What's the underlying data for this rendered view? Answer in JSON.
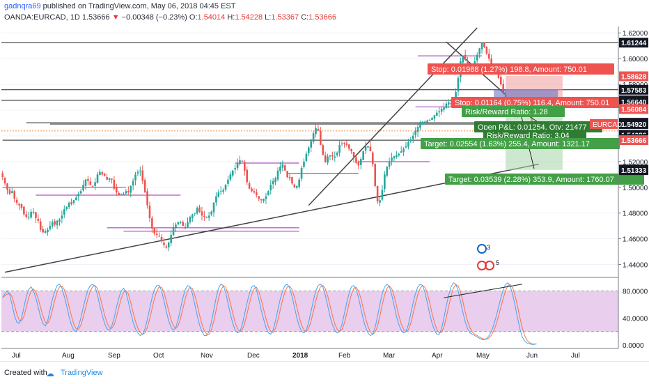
{
  "header": {
    "user": "gadnqra69",
    "published": " published on TradingView.com, May 06, 2018 04:45 EST",
    "symbol_interval": "OANDA:EURCAD, 1D",
    "last": "1.53666",
    "change": "−0.00348 (−0.23%)",
    "open_label": "O:",
    "open": "1.54014",
    "high_label": "H:",
    "high": "1.54228",
    "low_label": "L:",
    "low": "1.53367",
    "close_label": "C:",
    "close": "1.53666"
  },
  "footer": {
    "created_with": "Created with",
    "brand": "TradingView"
  },
  "colors": {
    "up": "#26a69a",
    "down": "#ef5350",
    "ink": "#131722",
    "purple": "#9c27b0",
    "stoch_k": "#42a5f5",
    "stoch_d": "#ff7043"
  },
  "chart_data": [
    {
      "type": "candlestick",
      "symbol": "OANDA:EURCAD",
      "interval": "1D",
      "ylim": [
        1.43,
        1.625
      ],
      "y_ticks": [
        "1.62000",
        "1.60000",
        "1.58000",
        "1.56000",
        "1.54000",
        "1.52000",
        "1.50000",
        "1.48000",
        "1.46000",
        "1.44000"
      ],
      "x_ticks": [
        "Jul",
        "Aug",
        "Sep",
        "Oct",
        "Nov",
        "Dec",
        "2018",
        "Feb",
        "Mar",
        "Apr",
        "May",
        "Jun",
        "Jul"
      ],
      "closes": [
        1.508,
        1.503,
        1.498,
        1.495,
        1.497,
        1.491,
        1.488,
        1.486,
        1.484,
        1.479,
        1.477,
        1.477,
        1.481,
        1.481,
        1.476,
        1.474,
        1.467,
        1.465,
        1.466,
        1.467,
        1.47,
        1.473,
        1.471,
        1.474,
        1.475,
        1.478,
        1.483,
        1.485,
        1.488,
        1.487,
        1.49,
        1.492,
        1.495,
        1.497,
        1.502,
        1.506,
        1.505,
        1.502,
        1.501,
        1.504,
        1.51,
        1.512,
        1.51,
        1.509,
        1.506,
        1.507,
        1.506,
        1.499,
        1.496,
        1.494,
        1.495,
        1.495,
        1.497,
        1.496,
        1.501,
        1.505,
        1.51,
        1.512,
        1.513,
        1.505,
        1.496,
        1.486,
        1.476,
        1.468,
        1.464,
        1.463,
        1.462,
        1.458,
        1.455,
        1.453,
        1.457,
        1.463,
        1.469,
        1.471,
        1.473,
        1.473,
        1.47,
        1.469,
        1.473,
        1.477,
        1.479,
        1.48,
        1.484,
        1.481,
        1.478,
        1.477,
        1.477,
        1.478,
        1.481,
        1.488,
        1.493,
        1.496,
        1.497,
        1.498,
        1.502,
        1.506,
        1.51,
        1.513,
        1.515,
        1.519,
        1.521,
        1.52,
        1.513,
        1.504,
        1.499,
        1.497,
        1.496,
        1.494,
        1.491,
        1.49,
        1.491,
        1.493,
        1.497,
        1.502,
        1.505,
        1.507,
        1.513,
        1.516,
        1.518,
        1.513,
        1.508,
        1.507,
        1.503,
        1.5,
        1.501,
        1.506,
        1.515,
        1.52,
        1.526,
        1.531,
        1.536,
        1.542,
        1.546,
        1.544,
        1.533,
        1.525,
        1.52,
        1.524,
        1.525,
        1.524,
        1.524,
        1.527,
        1.533,
        1.534,
        1.534,
        1.533,
        1.53,
        1.528,
        1.523,
        1.519,
        1.517,
        1.522,
        1.528,
        1.532,
        1.532,
        1.528,
        1.518,
        1.501,
        1.489,
        1.49,
        1.498,
        1.51,
        1.516,
        1.52,
        1.523,
        1.524,
        1.525,
        1.526,
        1.528,
        1.53,
        1.532,
        1.535,
        1.537,
        1.54,
        1.544,
        1.547,
        1.55,
        1.551,
        1.551,
        1.552,
        1.552,
        1.554,
        1.556,
        1.558,
        1.559,
        1.561,
        1.562,
        1.565,
        1.566,
        1.565,
        1.568,
        1.574,
        1.585,
        1.598,
        1.602,
        1.599,
        1.592,
        1.59,
        1.593,
        1.598,
        1.603,
        1.608,
        1.612,
        1.609,
        1.604,
        1.6,
        1.596,
        1.592,
        1.589,
        1.585,
        1.58,
        1.573,
        1.565,
        1.561,
        1.558,
        1.556,
        1.556,
        1.557,
        1.558,
        1.56,
        1.565,
        1.562,
        1.556,
        1.546,
        1.539,
        1.537,
        1.537,
        1.537
      ],
      "trendlines_price": [
        {
          "from": [
            1,
            1.434
          ],
          "to": [
            226,
            1.518
          ]
        },
        {
          "from": [
            129,
            1.486
          ],
          "to": [
            200,
            1.624
          ]
        },
        {
          "from": [
            187,
            1.613
          ],
          "to": [
            212,
            1.572
          ]
        }
      ],
      "horizontal_levels": [
        "1.61244",
        "1.58628",
        "1.57583",
        "1.56758",
        "1.56640",
        "1.56084",
        "1.55017",
        "1.54920",
        "1.54086",
        "1.53755",
        "1.53666",
        "1.51381",
        "1.51333"
      ],
      "level_label_colors": [
        "#131722",
        "#ef5350",
        "#131722",
        "#131722",
        "#131722",
        "#ef5350",
        "#131722",
        "#131722",
        "#131722",
        "#131722",
        "#ef5350",
        "#131722",
        "#131722"
      ],
      "symbol_badge": "EURCAD",
      "positions": [
        {
          "type": "short",
          "stop": "Stop: 0.01988 (1.27%) 198.8, Amount: 750.01"
        },
        {
          "type": "short",
          "stop": "Stop: 0.01164 (0.75%) 116.4, Amount: 750.01",
          "rr": "Risk/Reward Ratio: 1.28",
          "open_pl": "Open P&L: 0.01254, Qty: 21477",
          "rr2": "Risk/Reward Ratio: 3.04",
          "target": "Target: 0.02554 (1.63%) 255.4, Amount: 1321.17"
        },
        {
          "type": "short",
          "target": "Target: 0.03539 (2.28%) 353.9, Amount: 1760.07"
        }
      ],
      "event_marks": [
        "3",
        "5"
      ]
    },
    {
      "type": "line",
      "name": "stochastic",
      "ylim": [
        -5,
        100
      ],
      "y_ticks": [
        "80.0000",
        "40.0000",
        "0.0000"
      ],
      "bands": [
        20,
        80
      ],
      "series": [
        {
          "values": [
            70,
            76,
            80,
            74,
            60,
            44,
            34,
            32,
            40,
            56,
            72,
            82,
            86,
            80,
            70,
            56,
            42,
            32,
            28,
            36,
            52,
            68,
            80,
            88,
            90,
            84,
            72,
            58,
            42,
            30,
            22,
            20,
            28,
            40,
            56,
            70,
            82,
            88,
            90,
            86,
            74,
            58,
            44,
            32,
            24,
            22,
            28,
            40,
            56,
            70,
            80,
            84,
            78,
            64,
            48,
            34,
            24,
            18,
            14,
            16,
            24,
            38,
            54,
            70,
            82,
            88,
            88,
            80,
            66,
            50,
            36,
            26,
            22,
            26,
            38,
            54,
            70,
            82,
            88,
            86,
            76,
            60,
            44,
            30,
            20,
            14,
            14,
            20,
            34,
            52,
            70,
            84,
            90,
            88,
            78,
            62,
            46,
            32,
            22,
            18,
            20,
            30,
            46,
            62,
            76,
            86,
            88,
            82,
            68,
            52,
            38,
            26,
            18,
            16,
            22,
            36,
            52,
            68,
            80,
            88,
            90,
            84,
            72,
            56,
            40,
            28,
            20,
            18,
            22,
            34,
            50,
            66,
            80,
            88,
            90,
            86,
            74,
            58,
            42,
            30,
            22,
            18,
            20,
            30,
            46,
            62,
            76,
            86,
            88,
            82,
            70,
            54,
            38,
            26,
            18,
            14,
            16,
            26,
            42,
            60,
            76,
            86,
            90,
            86,
            74,
            58,
            42,
            30,
            22,
            18,
            20,
            30,
            46,
            62,
            76,
            86,
            90,
            88,
            78,
            62,
            46,
            32,
            22,
            16,
            16,
            24,
            40,
            58,
            74,
            86,
            92,
            90,
            80,
            64,
            48,
            34,
            24,
            18,
            16,
            14,
            12,
            10,
            8,
            8,
            10,
            14,
            20,
            30,
            42,
            56,
            70,
            82,
            90,
            92,
            86,
            74,
            58,
            40,
            24,
            12,
            6,
            3,
            2,
            1,
            1,
            2
          ]
        }
      ]
    }
  ]
}
